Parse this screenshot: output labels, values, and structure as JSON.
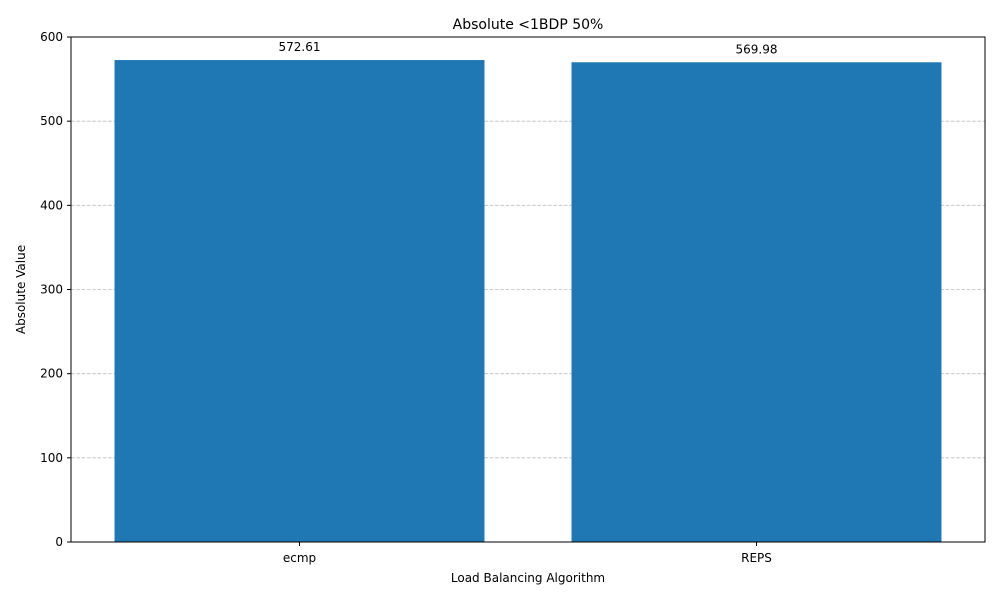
{
  "chart_data": {
    "type": "bar",
    "title": "Absolute <1BDP 50%",
    "xlabel": "Load Balancing Algorithm",
    "ylabel": "Absolute Value",
    "categories": [
      "ecmp",
      "REPS"
    ],
    "values": [
      572.61,
      569.98
    ],
    "value_labels": [
      "572.61",
      "569.98"
    ],
    "ylim": [
      0,
      600
    ],
    "yticks": [
      0,
      100,
      200,
      300,
      400,
      500,
      600
    ],
    "grid": "y-dashed",
    "bar_color": "#1f77b4"
  }
}
